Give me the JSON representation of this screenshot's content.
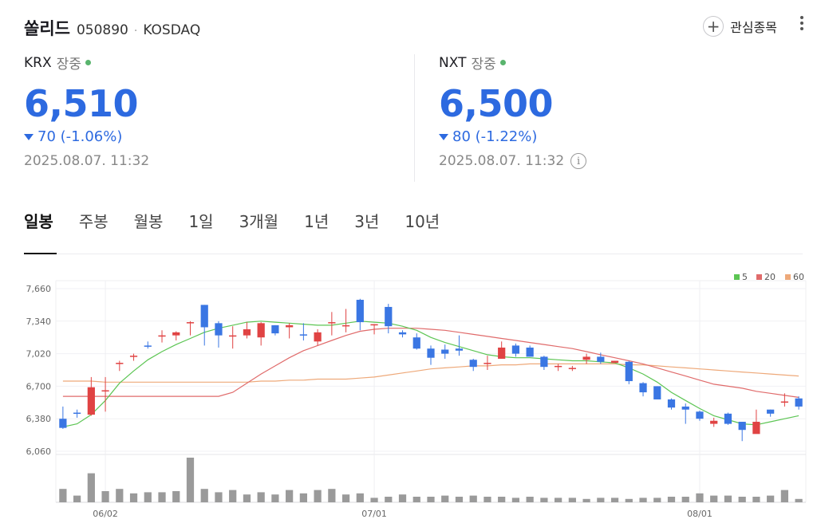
{
  "header": {
    "name": "쏠리드",
    "code": "050890",
    "separator": "·",
    "market": "KOSDAQ",
    "watch_label": "관심종목"
  },
  "krx": {
    "exchange": "KRX",
    "status": "장중",
    "price": "6,510",
    "change": "70 (-1.06%)",
    "time": "2025.08.07. 11:32"
  },
  "nxt": {
    "exchange": "NXT",
    "status": "장중",
    "price": "6,500",
    "change": "80 (-1.22%)",
    "time": "2025.08.07. 11:32"
  },
  "tabs": [
    "일봉",
    "주봉",
    "월봉",
    "1일",
    "3개월",
    "1년",
    "3년",
    "10년"
  ],
  "active_tab": "일봉",
  "colors": {
    "up": "#e04343",
    "down": "#3a76e3",
    "ma5": "#5cc553",
    "ma20": "#e06b6b",
    "ma60": "#eea97a",
    "volume": "#9a9a9a",
    "price": "#2d6ae0"
  },
  "chart_data": {
    "type": "candlestick",
    "ylim": [
      6060,
      7660
    ],
    "y_ticks": [
      "7,660",
      "7,340",
      "7,020",
      "6,700",
      "6,380",
      "6,060"
    ],
    "x_ticks": [
      {
        "index": 3,
        "label": "06/02"
      },
      {
        "index": 22,
        "label": "07/01"
      },
      {
        "index": 45,
        "label": "08/01"
      }
    ],
    "legend": [
      {
        "name": "5",
        "color": "#5cc553"
      },
      {
        "name": "20",
        "color": "#e06b6b"
      },
      {
        "name": "60",
        "color": "#eea97a"
      }
    ],
    "candles": [
      [
        6380,
        6290,
        6500,
        6280
      ],
      [
        6440,
        6430,
        6470,
        6390
      ],
      [
        6420,
        6690,
        6790,
        6410
      ],
      [
        6650,
        6660,
        6790,
        6450
      ],
      [
        6920,
        6930,
        6950,
        6850
      ],
      [
        6990,
        7000,
        7020,
        6950
      ],
      [
        7100,
        7090,
        7140,
        7070
      ],
      [
        7200,
        7200,
        7250,
        7130
      ],
      [
        7200,
        7230,
        7240,
        7150
      ],
      [
        7330,
        7330,
        7340,
        7200
      ],
      [
        7500,
        7280,
        7500,
        7100
      ],
      [
        7320,
        7200,
        7340,
        7080
      ],
      [
        7200,
        7200,
        7290,
        7070
      ],
      [
        7200,
        7260,
        7330,
        7170
      ],
      [
        7180,
        7320,
        7330,
        7100
      ],
      [
        7300,
        7220,
        7300,
        7200
      ],
      [
        7280,
        7300,
        7320,
        7170
      ],
      [
        7210,
        7200,
        7320,
        7150
      ],
      [
        7140,
        7230,
        7260,
        7100
      ],
      [
        7330,
        7330,
        7430,
        7200
      ],
      [
        7300,
        7300,
        7460,
        7230
      ],
      [
        7550,
        7330,
        7560,
        7250
      ],
      [
        7300,
        7310,
        7310,
        7210
      ],
      [
        7480,
        7290,
        7510,
        7220
      ],
      [
        7230,
        7210,
        7250,
        7180
      ],
      [
        7180,
        7070,
        7220,
        7060
      ],
      [
        7070,
        6980,
        7100,
        6910
      ],
      [
        7060,
        7020,
        7110,
        6970
      ],
      [
        7070,
        7050,
        7200,
        7000
      ],
      [
        6960,
        6890,
        6970,
        6850
      ],
      [
        6920,
        6930,
        7000,
        6860
      ],
      [
        6970,
        7080,
        7140,
        6970
      ],
      [
        7100,
        7020,
        7120,
        6990
      ],
      [
        7080,
        6990,
        7100,
        6990
      ],
      [
        6990,
        6890,
        7000,
        6860
      ],
      [
        6900,
        6900,
        6920,
        6850
      ],
      [
        6870,
        6880,
        6900,
        6850
      ],
      [
        6960,
        6990,
        7020,
        6920
      ],
      [
        6990,
        6940,
        7030,
        6920
      ],
      [
        6930,
        6950,
        6950,
        6930
      ],
      [
        6940,
        6750,
        6950,
        6720
      ],
      [
        6730,
        6640,
        6740,
        6600
      ],
      [
        6700,
        6570,
        6700,
        6570
      ],
      [
        6570,
        6490,
        6580,
        6470
      ],
      [
        6500,
        6470,
        6530,
        6330
      ],
      [
        6450,
        6380,
        6460,
        6360
      ],
      [
        6330,
        6360,
        6390,
        6300
      ],
      [
        6430,
        6330,
        6440,
        6320
      ],
      [
        6350,
        6270,
        6350,
        6160
      ],
      [
        6230,
        6350,
        6470,
        6240
      ],
      [
        6470,
        6430,
        6470,
        6400
      ],
      [
        6540,
        6550,
        6630,
        6500
      ],
      [
        6580,
        6500,
        6600,
        6470
      ]
    ],
    "ma5": [
      6300,
      6330,
      6420,
      6560,
      6730,
      6850,
      6960,
      7040,
      7110,
      7170,
      7230,
      7270,
      7300,
      7330,
      7340,
      7330,
      7320,
      7310,
      7300,
      7300,
      7320,
      7340,
      7330,
      7320,
      7290,
      7250,
      7180,
      7130,
      7090,
      7050,
      7010,
      6990,
      6980,
      6980,
      6970,
      6960,
      6950,
      6950,
      6940,
      6930,
      6880,
      6820,
      6740,
      6640,
      6560,
      6480,
      6410,
      6370,
      6330,
      6320,
      6350,
      6380,
      6410
    ],
    "ma20": [
      6600,
      6600,
      6600,
      6600,
      6600,
      6600,
      6600,
      6600,
      6600,
      6600,
      6600,
      6600,
      6640,
      6730,
      6820,
      6900,
      6980,
      7050,
      7100,
      7150,
      7200,
      7240,
      7260,
      7270,
      7270,
      7270,
      7260,
      7250,
      7230,
      7210,
      7190,
      7170,
      7150,
      7130,
      7110,
      7090,
      7070,
      7040,
      7010,
      6980,
      6950,
      6920,
      6880,
      6840,
      6800,
      6760,
      6720,
      6700,
      6680,
      6650,
      6630,
      6610,
      6590
    ],
    "ma60": [
      6750,
      6750,
      6750,
      6740,
      6740,
      6740,
      6740,
      6740,
      6740,
      6740,
      6740,
      6740,
      6740,
      6740,
      6750,
      6750,
      6760,
      6760,
      6770,
      6770,
      6770,
      6780,
      6790,
      6810,
      6830,
      6850,
      6870,
      6880,
      6890,
      6900,
      6900,
      6910,
      6910,
      6920,
      6920,
      6920,
      6920,
      6920,
      6920,
      6920,
      6910,
      6910,
      6900,
      6890,
      6880,
      6870,
      6860,
      6850,
      6840,
      6830,
      6820,
      6810,
      6800
    ],
    "volume": [
      12,
      6,
      26,
      10,
      12,
      8,
      9,
      9,
      10,
      40,
      12,
      9,
      11,
      7,
      9,
      7,
      11,
      8,
      11,
      12,
      7,
      8,
      4,
      5,
      7,
      5,
      5,
      6,
      5,
      6,
      5,
      5,
      4,
      5,
      4,
      4,
      4,
      3,
      4,
      4,
      3,
      4,
      4,
      5,
      5,
      8,
      6,
      6,
      5,
      5,
      6,
      11,
      3
    ]
  }
}
